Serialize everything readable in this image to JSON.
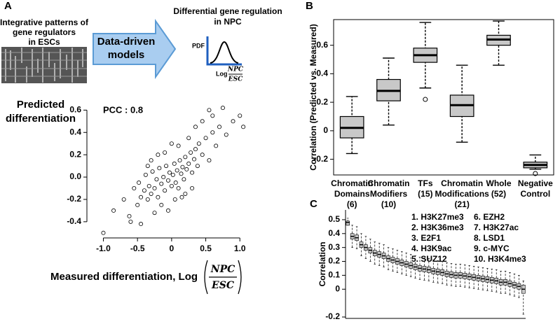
{
  "panels": [
    "A",
    "B",
    "C"
  ],
  "diagram": {
    "left_label": [
      "Integrative patterns of",
      "gene regulators",
      "in ESCs"
    ],
    "model": [
      "Data-driven",
      "models"
    ],
    "right_label": [
      "Differential gene regulation",
      "in NPC"
    ],
    "pdf": "PDF",
    "log": "Log",
    "fraction": [
      "NPC",
      "ESC"
    ]
  },
  "chart_data": [
    {
      "type": "scatter",
      "ylabel": [
        "Predicted",
        "differentiation"
      ],
      "annotation": "PCC : 0.8",
      "xlabel": "Measured differentiation, Log",
      "xlabel_fraction": [
        "NPC",
        "ESC"
      ],
      "color": "#000000",
      "x": [
        -1.0,
        -0.85,
        -0.7,
        -0.62,
        -0.55,
        -0.5,
        -0.48,
        -0.45,
        -0.4,
        -0.38,
        -0.35,
        -0.33,
        -0.3,
        -0.28,
        -0.25,
        -0.22,
        -0.2,
        -0.18,
        -0.15,
        -0.12,
        -0.1,
        -0.08,
        -0.05,
        -0.03,
        0,
        0.02,
        0.04,
        0.06,
        0.08,
        0.1,
        0.12,
        0.14,
        0.16,
        0.18,
        0.2,
        0.22,
        0.25,
        0.28,
        0.3,
        0.33,
        0.35,
        0.38,
        0.4,
        0.45,
        0.5,
        0.55,
        0.6,
        0.65,
        0.7,
        0.8,
        0.9,
        1.0,
        1.05,
        -0.3,
        -0.2,
        -0.1,
        0,
        0.1,
        0.2,
        0.3,
        -0.15,
        -0.05,
        0.05,
        0.15,
        0.25,
        -0.25,
        0.35,
        -0.35,
        0.45,
        0.6,
        0.75,
        -0.6,
        -0.45,
        0.55
      ],
      "y": [
        -0.5,
        -0.3,
        -0.2,
        -0.35,
        -0.1,
        -0.25,
        -0.05,
        -0.18,
        -0.12,
        0.02,
        -0.2,
        -0.08,
        -0.15,
        0.05,
        -0.1,
        -0.02,
        -0.18,
        0.08,
        -0.06,
        0.0,
        -0.12,
        0.1,
        -0.03,
        0.04,
        -0.08,
        0.02,
        0.12,
        -0.05,
        0.06,
        -0.1,
        0.15,
        0.03,
        0.09,
        -0.02,
        0.18,
        0.07,
        0.12,
        0.22,
        0.04,
        0.16,
        0.25,
        0.1,
        0.3,
        0.2,
        0.35,
        0.15,
        0.4,
        0.28,
        0.45,
        0.38,
        0.5,
        0.55,
        0.45,
        0.15,
        0.2,
        0.22,
        0.3,
        0.28,
        -0.15,
        -0.1,
        -0.25,
        -0.3,
        -0.2,
        -0.18,
        0.35,
        -0.32,
        0.45,
        0.1,
        0.5,
        0.55,
        0.62,
        -0.4,
        -0.42,
        0.6
      ],
      "xlim": [
        -1.2,
        1.1
      ],
      "ylim": [
        -0.52,
        0.69
      ],
      "xticks": [
        {
          "value": -1,
          "label": "-1.0"
        },
        -0.5,
        0,
        0.5,
        {
          "value": 1,
          "label": "1.0"
        }
      ],
      "yticks": [
        -0.4,
        -0.2,
        {
          "value": 0,
          "label": "0.0"
        },
        0.2,
        0.4,
        0.6
      ]
    },
    {
      "type": "box",
      "ylabel": "Correlation (Predicted vs. Measured)",
      "color": "#c8c8c8",
      "categories": [
        [
          "Chromatin",
          "Domains",
          "(6)"
        ],
        [
          "Chromatin",
          "Modifiers",
          "(10)"
        ],
        [
          "TFs",
          "(15)"
        ],
        [
          "Chromatin",
          "Modifications",
          "(21)"
        ],
        [
          "Whole",
          "(52)"
        ],
        [
          "Negative",
          "Control"
        ]
      ],
      "low": [
        -0.16,
        0.04,
        0.3,
        -0.08,
        0.46,
        -0.27
      ],
      "q1": [
        -0.05,
        0.21,
        0.48,
        0.1,
        0.6,
        -0.26
      ],
      "median": [
        0.02,
        0.28,
        0.53,
        0.18,
        0.64,
        -0.24
      ],
      "q3": [
        0.1,
        0.36,
        0.58,
        0.25,
        0.67,
        -0.22
      ],
      "high": [
        0.24,
        0.51,
        0.76,
        0.46,
        0.77,
        -0.17
      ],
      "outliers": [
        [],
        [],
        [
          0.22
        ],
        [],
        [],
        [
          -0.3
        ]
      ],
      "ylim": [
        -0.31,
        0.78
      ],
      "yticks": [
        -0.2,
        0,
        0.2,
        0.4,
        0.6
      ]
    },
    {
      "type": "box",
      "ylabel": "Correlation",
      "color": "#c8c8c8",
      "annotations": [
        "1. H3K27me3",
        "2. H3K36me3",
        "3. E2F1",
        "4. H3K9ac",
        "5. SUZ12",
        "6. EZH2",
        "7. H3K27ac",
        "8. LSD1",
        "9. c-MYC",
        "10. H3K4me3"
      ],
      "median": [
        0.48,
        0.38,
        0.37,
        0.32,
        0.3,
        0.28,
        0.26,
        0.25,
        0.24,
        0.22,
        0.21,
        0.2,
        0.19,
        0.18,
        0.17,
        0.16,
        0.15,
        0.145,
        0.14,
        0.13,
        0.125,
        0.12,
        0.11,
        0.105,
        0.1,
        0.1,
        0.095,
        0.09,
        0.085,
        0.08,
        0.075,
        0.07,
        0.065,
        0.06,
        0.05,
        0.05,
        0.04,
        0.03,
        0.02,
        0.0
      ],
      "q1": [
        0.46,
        0.36,
        0.35,
        0.3,
        0.28,
        0.26,
        0.24,
        0.23,
        0.22,
        0.2,
        0.19,
        0.18,
        0.17,
        0.16,
        0.15,
        0.14,
        0.13,
        0.125,
        0.12,
        0.11,
        0.105,
        0.1,
        0.09,
        0.085,
        0.08,
        0.08,
        0.075,
        0.07,
        0.065,
        0.06,
        0.055,
        0.05,
        0.045,
        0.04,
        0.03,
        0.03,
        0.02,
        0.01,
        0.0,
        -0.03
      ],
      "q3": [
        0.49,
        0.4,
        0.39,
        0.34,
        0.32,
        0.3,
        0.28,
        0.27,
        0.26,
        0.24,
        0.23,
        0.22,
        0.21,
        0.2,
        0.19,
        0.18,
        0.17,
        0.165,
        0.16,
        0.15,
        0.145,
        0.14,
        0.13,
        0.125,
        0.12,
        0.12,
        0.115,
        0.11,
        0.105,
        0.1,
        0.095,
        0.09,
        0.085,
        0.08,
        0.07,
        0.07,
        0.06,
        0.05,
        0.04,
        0.03
      ],
      "low": [
        0.46,
        0.3,
        0.29,
        0.24,
        0.22,
        0.2,
        0.18,
        0.17,
        0.16,
        0.14,
        0.13,
        0.12,
        0.11,
        0.1,
        0.09,
        0.08,
        0.07,
        0.065,
        0.06,
        0.05,
        0.045,
        0.04,
        0.03,
        0.025,
        0.02,
        0.02,
        0.015,
        0.01,
        0.005,
        0.0,
        -0.005,
        -0.01,
        -0.015,
        -0.02,
        -0.03,
        -0.03,
        -0.04,
        -0.05,
        -0.06,
        -0.18
      ],
      "high": [
        0.51,
        0.46,
        0.45,
        0.4,
        0.38,
        0.36,
        0.34,
        0.33,
        0.32,
        0.3,
        0.29,
        0.28,
        0.27,
        0.26,
        0.25,
        0.24,
        0.23,
        0.225,
        0.22,
        0.21,
        0.205,
        0.2,
        0.19,
        0.185,
        0.18,
        0.18,
        0.175,
        0.17,
        0.165,
        0.16,
        0.155,
        0.15,
        0.145,
        0.14,
        0.13,
        0.13,
        0.12,
        0.11,
        0.1,
        0.06
      ],
      "ylim": [
        -0.21,
        0.57
      ],
      "yticks": [
        -0.2,
        0,
        0.1,
        0.2,
        0.3,
        0.4,
        0.5
      ]
    }
  ]
}
